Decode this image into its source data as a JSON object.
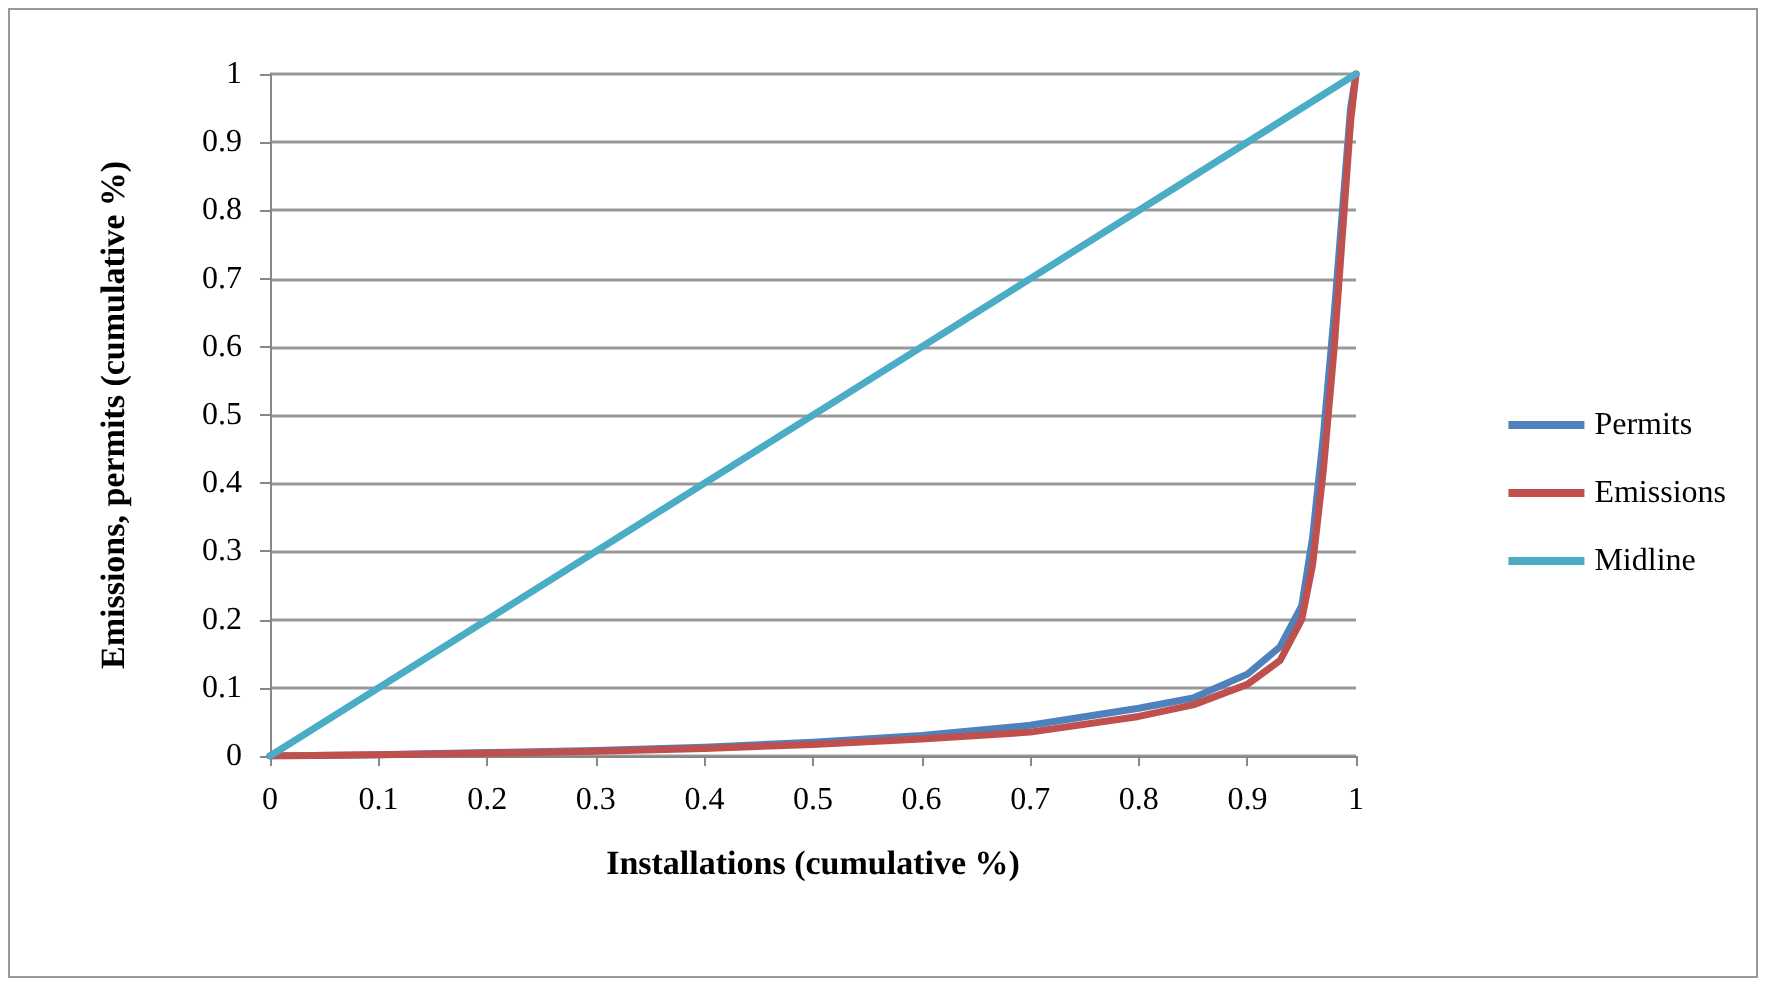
{
  "chart_data": {
    "type": "line",
    "xlabel": "Installations (cumulative %)",
    "ylabel": "Emissions, permits (cumulative %)",
    "xlim": [
      0,
      1
    ],
    "xticks": [
      0,
      0.1,
      0.2,
      0.3,
      0.4,
      0.5,
      0.6,
      0.7,
      0.8,
      0.9,
      1
    ],
    "ylim": [
      0,
      1
    ],
    "yticks": [
      0,
      0.1,
      0.2,
      0.3,
      0.4,
      0.5,
      0.6,
      0.7,
      0.8,
      0.9,
      1
    ],
    "grid": "y",
    "legend": "right",
    "marker": "none",
    "line_style": "solid",
    "series": [
      {
        "name": "Permits",
        "color": "#4f81bd",
        "x": [
          0,
          0.1,
          0.2,
          0.3,
          0.4,
          0.5,
          0.6,
          0.7,
          0.8,
          0.85,
          0.9,
          0.93,
          0.95,
          0.96,
          0.97,
          0.98,
          0.99,
          0.995,
          1
        ],
        "values": [
          0,
          0.002,
          0.005,
          0.008,
          0.013,
          0.02,
          0.03,
          0.045,
          0.07,
          0.085,
          0.12,
          0.16,
          0.22,
          0.32,
          0.47,
          0.65,
          0.85,
          0.95,
          1
        ]
      },
      {
        "name": "Emissions",
        "color": "#c0504d",
        "x": [
          0,
          0.1,
          0.2,
          0.3,
          0.4,
          0.5,
          0.6,
          0.7,
          0.8,
          0.85,
          0.9,
          0.93,
          0.95,
          0.96,
          0.97,
          0.98,
          0.99,
          0.995,
          1
        ],
        "values": [
          0,
          0.002,
          0.004,
          0.007,
          0.011,
          0.017,
          0.025,
          0.035,
          0.058,
          0.075,
          0.105,
          0.14,
          0.2,
          0.28,
          0.42,
          0.6,
          0.82,
          0.93,
          1
        ]
      },
      {
        "name": "Midline",
        "color": "#4bacc6",
        "x": [
          0,
          1
        ],
        "values": [
          0,
          1
        ]
      }
    ]
  }
}
